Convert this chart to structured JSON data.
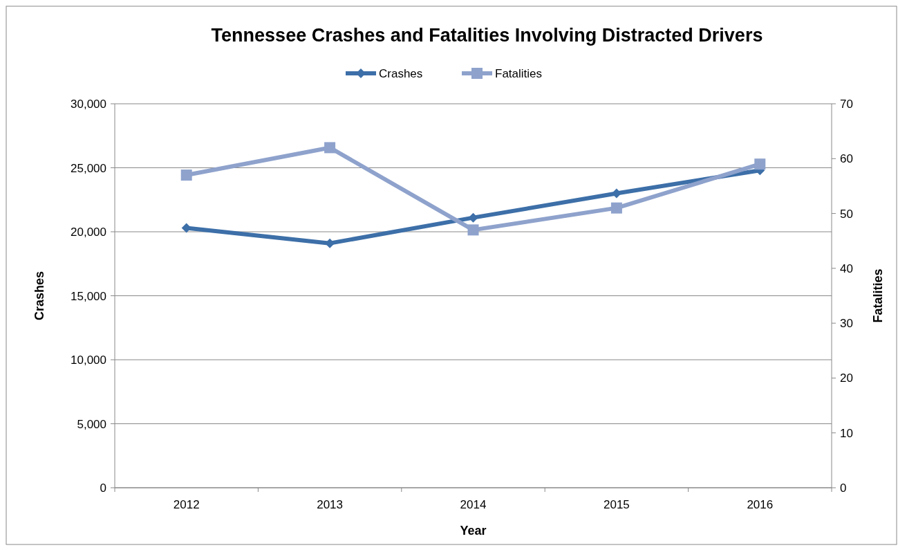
{
  "chart_data": {
    "type": "line",
    "title": "Tennessee Crashes and Fatalities Involving Distracted Drivers",
    "xlabel": "Year",
    "ylabel": "Crashes",
    "y2label": "Fatalities",
    "categories": [
      "2012",
      "2013",
      "2014",
      "2015",
      "2016"
    ],
    "series": [
      {
        "name": "Crashes",
        "color": "#3d6fa8",
        "values": [
          20300,
          19100,
          21100,
          23000,
          24800
        ],
        "marker": "diamond"
      },
      {
        "name": "Fatalities",
        "color": "#8ea2cc",
        "values": [
          57,
          62,
          47,
          51,
          59
        ],
        "axis": "y2",
        "marker": "square"
      }
    ],
    "ylim": [
      0,
      30000
    ],
    "yticks": [
      {
        "value": 0,
        "label": "0"
      },
      {
        "value": 5000,
        "label": "5,000"
      },
      {
        "value": 10000,
        "label": "10,000"
      },
      {
        "value": 15000,
        "label": "15,000"
      },
      {
        "value": 20000,
        "label": "20,000"
      },
      {
        "value": 25000,
        "label": "25,000"
      },
      {
        "value": 30000,
        "label": "30,000"
      }
    ],
    "y2lim": [
      0,
      70
    ],
    "y2ticks": [
      0,
      10,
      20,
      30,
      40,
      50,
      60,
      70
    ],
    "grid": "y",
    "legend": "top",
    "line_style": "solid"
  }
}
